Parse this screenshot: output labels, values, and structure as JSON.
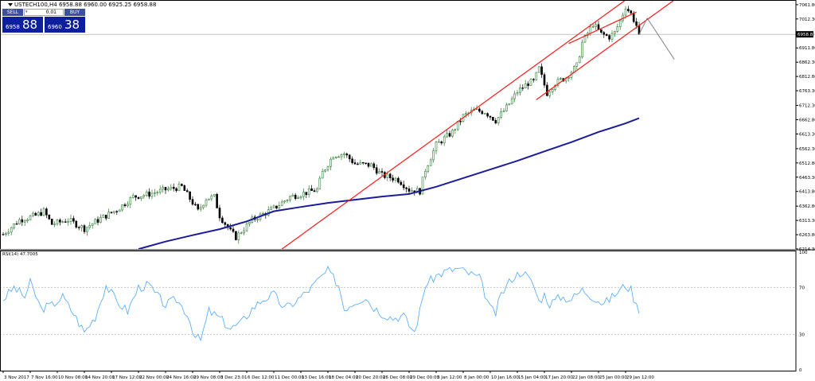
{
  "symbol_info": "USTECH100,H4  6958.88 6960.00 6925.25 6958.88",
  "trade_panel": {
    "sell_label": "SELL",
    "buy_label": "BUY",
    "lot": "0.01",
    "sell_small": "6958",
    "sell_big": "88",
    "buy_small": "6960",
    "buy_big": "38"
  },
  "colors": {
    "bull": "#2e7d32",
    "bear": "#000000",
    "ma": "#1c1c99",
    "channel": "#ff1a1a",
    "rsi": "#4da6ff",
    "projection": "#808080",
    "bid_line": "#a0a0a0"
  },
  "chart_data": [
    {
      "type": "candlestick",
      "symbol": "USTECH100",
      "timeframe": "H4",
      "x_range": [
        0,
        230
      ],
      "ylim": [
        6214.3,
        7078
      ],
      "y_ticks": [
        "7061.80",
        "7012.30",
        "6958.88",
        "6911.80",
        "6862.30",
        "6812.80",
        "6763.30",
        "6712.30",
        "6662.80",
        "6613.30",
        "6562.30",
        "6512.80",
        "6463.30",
        "6413.80",
        "6362.80",
        "6313.30",
        "6263.80",
        "6214.30"
      ],
      "current_price_label": "6958.88",
      "x_labels": [
        {
          "i": 0,
          "label": "3 Nov 2017"
        },
        {
          "i": 10,
          "label": "7 Nov 16:00"
        },
        {
          "i": 20,
          "label": "10 Nov 08:00"
        },
        {
          "i": 30,
          "label": "14 Nov 20:00"
        },
        {
          "i": 40,
          "label": "17 Nov 12:00"
        },
        {
          "i": 50,
          "label": "22 Nov 00:00"
        },
        {
          "i": 60,
          "label": "24 Nov 16:00"
        },
        {
          "i": 70,
          "label": "29 Nov 08:00"
        },
        {
          "i": 80,
          "label": "3 Dec 23:01"
        },
        {
          "i": 90,
          "label": "6 Dec 12:00"
        },
        {
          "i": 100,
          "label": "11 Dec 00:00"
        },
        {
          "i": 110,
          "label": "13 Dec 16:00"
        },
        {
          "i": 120,
          "label": "18 Dec 04:00"
        },
        {
          "i": 130,
          "label": "20 Dec 20:00"
        },
        {
          "i": 140,
          "label": "26 Dec 08:00"
        },
        {
          "i": 150,
          "label": "29 Dec 00:00"
        },
        {
          "i": 160,
          "label": "3 Jan 12:00"
        },
        {
          "i": 170,
          "label": "8 Jan 00:00"
        },
        {
          "i": 180,
          "label": "10 Jan 16:00"
        },
        {
          "i": 190,
          "label": "15 Jan 04:00"
        },
        {
          "i": 200,
          "label": "17 Jan 20:00"
        },
        {
          "i": 210,
          "label": "22 Jan 08:00"
        },
        {
          "i": 220,
          "label": "25 Jan 00:00"
        },
        {
          "i": 230,
          "label": "29 Jan 12:00"
        }
      ],
      "close_path": [
        [
          0,
          6265
        ],
        [
          6,
          6315
        ],
        [
          12,
          6330
        ],
        [
          15,
          6345
        ],
        [
          18,
          6300
        ],
        [
          24,
          6315
        ],
        [
          30,
          6285
        ],
        [
          36,
          6320
        ],
        [
          42,
          6350
        ],
        [
          48,
          6395
        ],
        [
          54,
          6405
        ],
        [
          60,
          6420
        ],
        [
          66,
          6430
        ],
        [
          70,
          6375
        ],
        [
          72,
          6345
        ],
        [
          75,
          6390
        ],
        [
          78,
          6395
        ],
        [
          80,
          6330
        ],
        [
          84,
          6275
        ],
        [
          86,
          6255
        ],
        [
          88,
          6275
        ],
        [
          92,
          6315
        ],
        [
          96,
          6335
        ],
        [
          100,
          6355
        ],
        [
          106,
          6395
        ],
        [
          112,
          6410
        ],
        [
          116,
          6420
        ],
        [
          118,
          6480
        ],
        [
          122,
          6540
        ],
        [
          126,
          6545
        ],
        [
          130,
          6510
        ],
        [
          136,
          6505
        ],
        [
          140,
          6470
        ],
        [
          146,
          6455
        ],
        [
          150,
          6420
        ],
        [
          154,
          6415
        ],
        [
          156,
          6490
        ],
        [
          160,
          6575
        ],
        [
          166,
          6620
        ],
        [
          170,
          6675
        ],
        [
          174,
          6695
        ],
        [
          178,
          6690
        ],
        [
          182,
          6660
        ],
        [
          186,
          6705
        ],
        [
          190,
          6760
        ],
        [
          194,
          6790
        ],
        [
          196,
          6795
        ],
        [
          198,
          6840
        ],
        [
          201,
          6755
        ],
        [
          204,
          6790
        ],
        [
          208,
          6810
        ],
        [
          212,
          6850
        ],
        [
          214,
          6930
        ],
        [
          218,
          6995
        ],
        [
          221,
          6960
        ],
        [
          224,
          6950
        ],
        [
          226,
          6965
        ],
        [
          228,
          7005
        ],
        [
          230,
          7055
        ],
        [
          232,
          7030
        ],
        [
          234,
          6990
        ],
        [
          235,
          6958.88
        ]
      ],
      "moving_average": [
        [
          50,
          6214
        ],
        [
          60,
          6240
        ],
        [
          70,
          6262
        ],
        [
          80,
          6283
        ],
        [
          90,
          6310
        ],
        [
          100,
          6345
        ],
        [
          110,
          6360
        ],
        [
          120,
          6374
        ],
        [
          130,
          6385
        ],
        [
          140,
          6396
        ],
        [
          150,
          6405
        ],
        [
          160,
          6430
        ],
        [
          170,
          6460
        ],
        [
          180,
          6490
        ],
        [
          190,
          6520
        ],
        [
          200,
          6553
        ],
        [
          210,
          6585
        ],
        [
          220,
          6620
        ],
        [
          230,
          6650
        ],
        [
          235,
          6668
        ]
      ],
      "channel_lines": [
        {
          "from": [
            103,
            6214
          ],
          "to": [
            230,
            7078
          ]
        },
        {
          "from": [
            197,
            6732
          ],
          "to": [
            248,
            7078
          ]
        },
        {
          "from": [
            209,
            6927
          ],
          "to": [
            234,
            7036
          ]
        }
      ],
      "projection_line": [
        [
          235,
          6958.88
        ],
        [
          238,
          7015
        ],
        [
          248,
          6872
        ]
      ]
    },
    {
      "type": "line",
      "title": "RSI(14) 47.7005",
      "ylim": [
        0,
        100
      ],
      "y_ticks": [
        "100",
        "70",
        "30",
        "0"
      ],
      "levels": [
        70,
        30
      ],
      "path": [
        [
          0,
          60
        ],
        [
          4,
          70
        ],
        [
          8,
          62
        ],
        [
          10,
          74
        ],
        [
          14,
          52
        ],
        [
          18,
          55
        ],
        [
          22,
          62
        ],
        [
          26,
          48
        ],
        [
          30,
          32
        ],
        [
          34,
          45
        ],
        [
          38,
          72
        ],
        [
          42,
          58
        ],
        [
          46,
          50
        ],
        [
          50,
          70
        ],
        [
          54,
          72
        ],
        [
          56,
          65
        ],
        [
          60,
          55
        ],
        [
          64,
          60
        ],
        [
          68,
          48
        ],
        [
          71,
          28
        ],
        [
          73,
          25
        ],
        [
          76,
          50
        ],
        [
          80,
          44
        ],
        [
          84,
          35
        ],
        [
          88,
          40
        ],
        [
          92,
          52
        ],
        [
          96,
          60
        ],
        [
          100,
          64
        ],
        [
          104,
          52
        ],
        [
          108,
          58
        ],
        [
          110,
          62
        ],
        [
          114,
          70
        ],
        [
          118,
          80
        ],
        [
          120,
          84
        ],
        [
          124,
          72
        ],
        [
          126,
          52
        ],
        [
          130,
          58
        ],
        [
          134,
          62
        ],
        [
          136,
          55
        ],
        [
          140,
          48
        ],
        [
          144,
          44
        ],
        [
          148,
          46
        ],
        [
          150,
          38
        ],
        [
          152,
          32
        ],
        [
          154,
          50
        ],
        [
          156,
          72
        ],
        [
          160,
          80
        ],
        [
          164,
          84
        ],
        [
          168,
          86
        ],
        [
          172,
          82
        ],
        [
          176,
          78
        ],
        [
          180,
          52
        ],
        [
          182,
          48
        ],
        [
          184,
          64
        ],
        [
          188,
          78
        ],
        [
          192,
          84
        ],
        [
          196,
          72
        ],
        [
          198,
          58
        ],
        [
          200,
          64
        ],
        [
          202,
          56
        ],
        [
          206,
          62
        ],
        [
          210,
          60
        ],
        [
          214,
          68
        ],
        [
          218,
          62
        ],
        [
          222,
          56
        ],
        [
          226,
          64
        ],
        [
          230,
          72
        ],
        [
          232,
          68
        ],
        [
          235,
          47.7
        ]
      ]
    }
  ]
}
